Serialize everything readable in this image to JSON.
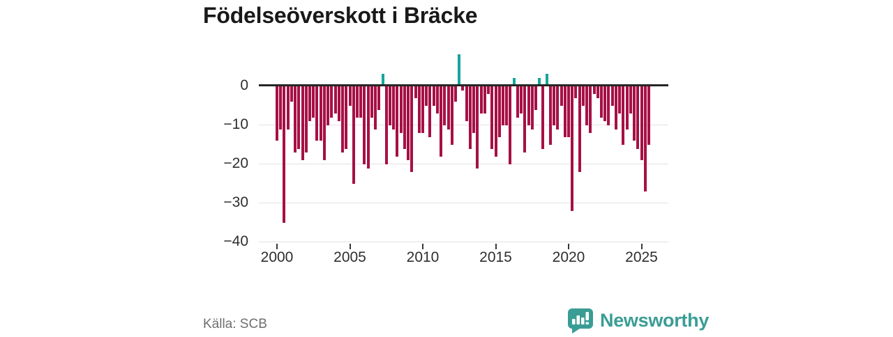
{
  "chart_data": {
    "type": "bar",
    "title": "Födelseöverskott i Bräcke",
    "xlabel": "",
    "ylabel": "",
    "frequency": "quarterly",
    "x_start": "2000 Q1",
    "x_end": "2025 Q3",
    "values": [
      -14,
      -11,
      -35,
      -11,
      -4,
      -17,
      -16,
      -19,
      -17,
      -9,
      -8,
      -14,
      -14,
      -19,
      -10,
      -8,
      -7,
      -9,
      -17,
      -16,
      -5,
      -25,
      -8,
      -8,
      -20,
      -21,
      -8,
      -11,
      -6,
      3,
      -20,
      -10,
      -11,
      -18,
      -12,
      -16,
      -19,
      -22,
      -3,
      -12,
      -12,
      -5,
      -13,
      -5,
      -7,
      -18,
      -10,
      -11,
      -15,
      -4,
      8,
      -1,
      -9,
      -16,
      -12,
      -21,
      -7,
      -7,
      -2,
      -16,
      -18,
      -13,
      -10,
      -10,
      -20,
      2,
      -8,
      -7,
      -17,
      -10,
      -11,
      -6,
      2,
      -16,
      3,
      -15,
      -10,
      -11,
      -5,
      -13,
      -13,
      -32,
      -3,
      -22,
      -5,
      -10,
      -12,
      -2,
      -3,
      -8,
      -9,
      -10,
      -5,
      -11,
      -7,
      -15,
      -11,
      -7,
      -14,
      -16,
      -19,
      -27,
      -15
    ],
    "x_tick_labels": [
      "2000",
      "2005",
      "2010",
      "2015",
      "2020",
      "2025"
    ],
    "x_tick_years": [
      2000,
      2005,
      2010,
      2015,
      2020,
      2025
    ],
    "y_tick_labels": [
      "0",
      "−10",
      "−20",
      "−30",
      "−40"
    ],
    "y_tick_values": [
      0,
      -10,
      -20,
      -30,
      -40
    ],
    "ylim": [
      -40,
      9
    ],
    "grid": "horizontal",
    "legend": "none",
    "negative_color": "#a61045",
    "positive_color": "#16a59c",
    "zero_line_color": "#262626",
    "gridline_color": "#e2e2e2"
  },
  "footer": {
    "source": "Källa: SCB",
    "brand": "Newsworthy",
    "brand_color": "#3a9d95"
  }
}
